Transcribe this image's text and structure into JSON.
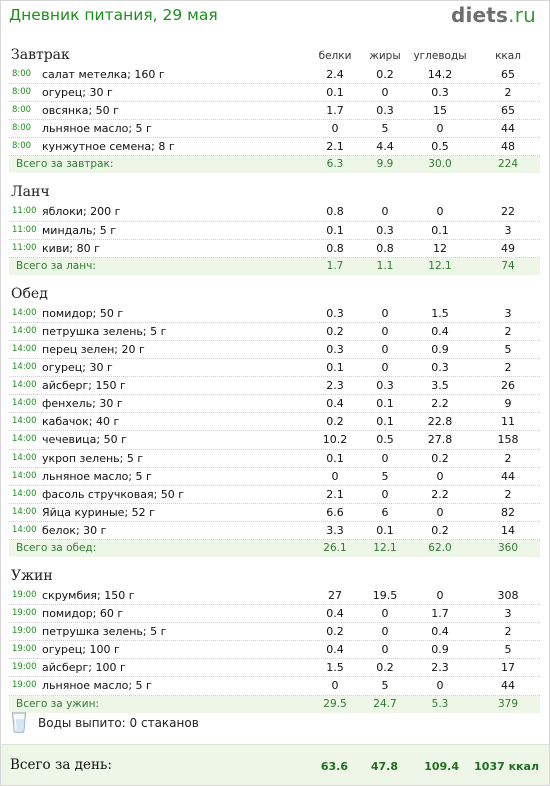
{
  "header": {
    "title": "Дневник питания, 29 мая",
    "logo_name": "diets",
    "logo_tld": ".ru"
  },
  "columns": [
    "белки",
    "жиры",
    "углеводы",
    "ккал"
  ],
  "meals": [
    {
      "name": "Завтрак",
      "items": [
        {
          "time": "8:00",
          "food": "салат метелка; 160 г",
          "protein": "2.4",
          "fat": "0.2",
          "carbs": "14.2",
          "kcal": "65"
        },
        {
          "time": "8:00",
          "food": "огурец; 30 г",
          "protein": "0.1",
          "fat": "0",
          "carbs": "0.3",
          "kcal": "2"
        },
        {
          "time": "8:00",
          "food": "овсянка; 50 г",
          "protein": "1.7",
          "fat": "0.3",
          "carbs": "15",
          "kcal": "65"
        },
        {
          "time": "8:00",
          "food": "льняное масло; 5 г",
          "protein": "0",
          "fat": "5",
          "carbs": "0",
          "kcal": "44"
        },
        {
          "time": "8:00",
          "food": "кунжутное семена; 8 г",
          "protein": "2.1",
          "fat": "4.4",
          "carbs": "0.5",
          "kcal": "48"
        }
      ],
      "total": {
        "label": "Всего за завтрак:",
        "protein": "6.3",
        "fat": "9.9",
        "carbs": "30.0",
        "kcal": "224"
      }
    },
    {
      "name": "Ланч",
      "items": [
        {
          "time": "11:00",
          "food": "яблоки; 200 г",
          "protein": "0.8",
          "fat": "0",
          "carbs": "0",
          "kcal": "22"
        },
        {
          "time": "11:00",
          "food": "миндаль; 5 г",
          "protein": "0.1",
          "fat": "0.3",
          "carbs": "0.1",
          "kcal": "3"
        },
        {
          "time": "11:00",
          "food": "киви; 80 г",
          "protein": "0.8",
          "fat": "0.8",
          "carbs": "12",
          "kcal": "49"
        }
      ],
      "total": {
        "label": "Всего за ланч:",
        "protein": "1.7",
        "fat": "1.1",
        "carbs": "12.1",
        "kcal": "74"
      }
    },
    {
      "name": "Обед",
      "items": [
        {
          "time": "14:00",
          "food": "помидор; 50 г",
          "protein": "0.3",
          "fat": "0",
          "carbs": "1.5",
          "kcal": "3"
        },
        {
          "time": "14:00",
          "food": "петрушка зелень; 5 г",
          "protein": "0.2",
          "fat": "0",
          "carbs": "0.4",
          "kcal": "2"
        },
        {
          "time": "14:00",
          "food": "перец зелен; 20 г",
          "protein": "0.3",
          "fat": "0",
          "carbs": "0.9",
          "kcal": "5"
        },
        {
          "time": "14:00",
          "food": "огурец; 30 г",
          "protein": "0.1",
          "fat": "0",
          "carbs": "0.3",
          "kcal": "2"
        },
        {
          "time": "14:00",
          "food": "айсберг; 150 г",
          "protein": "2.3",
          "fat": "0.3",
          "carbs": "3.5",
          "kcal": "26"
        },
        {
          "time": "14:00",
          "food": "фенхель; 30 г",
          "protein": "0.4",
          "fat": "0.1",
          "carbs": "2.2",
          "kcal": "9"
        },
        {
          "time": "14:00",
          "food": "кабачок; 40 г",
          "protein": "0.2",
          "fat": "0.1",
          "carbs": "22.8",
          "kcal": "11"
        },
        {
          "time": "14:00",
          "food": "чечевица; 50 г",
          "protein": "10.2",
          "fat": "0.5",
          "carbs": "27.8",
          "kcal": "158"
        },
        {
          "time": "14:00",
          "food": "укроп зелень; 5 г",
          "protein": "0.1",
          "fat": "0",
          "carbs": "0.2",
          "kcal": "2"
        },
        {
          "time": "14:00",
          "food": "льняное масло; 5 г",
          "protein": "0",
          "fat": "5",
          "carbs": "0",
          "kcal": "44"
        },
        {
          "time": "14:00",
          "food": "фасоль стручковая; 50 г",
          "protein": "2.1",
          "fat": "0",
          "carbs": "2.2",
          "kcal": "2"
        },
        {
          "time": "14:00",
          "food": "Яйца куриные; 52 г",
          "protein": "6.6",
          "fat": "6",
          "carbs": "0",
          "kcal": "82"
        },
        {
          "time": "14:00",
          "food": "белок; 30 г",
          "protein": "3.3",
          "fat": "0.1",
          "carbs": "0.2",
          "kcal": "14"
        }
      ],
      "total": {
        "label": "Всего за обед:",
        "protein": "26.1",
        "fat": "12.1",
        "carbs": "62.0",
        "kcal": "360"
      }
    },
    {
      "name": "Ужин",
      "items": [
        {
          "time": "19:00",
          "food": "скрумбия; 150 г",
          "protein": "27",
          "fat": "19.5",
          "carbs": "0",
          "kcal": "308"
        },
        {
          "time": "19:00",
          "food": "помидор; 60 г",
          "protein": "0.4",
          "fat": "0",
          "carbs": "1.7",
          "kcal": "3"
        },
        {
          "time": "19:00",
          "food": "петрушка зелень; 5 г",
          "protein": "0.2",
          "fat": "0",
          "carbs": "0.4",
          "kcal": "2"
        },
        {
          "time": "19:00",
          "food": "огурец; 100 г",
          "protein": "0.4",
          "fat": "0",
          "carbs": "0.9",
          "kcal": "5"
        },
        {
          "time": "19:00",
          "food": "айсберг; 100 г",
          "protein": "1.5",
          "fat": "0.2",
          "carbs": "2.3",
          "kcal": "17"
        },
        {
          "time": "19:00",
          "food": "льняное масло; 5 г",
          "protein": "0",
          "fat": "5",
          "carbs": "0",
          "kcal": "44"
        }
      ],
      "total": {
        "label": "Всего за ужин:",
        "protein": "29.5",
        "fat": "24.7",
        "carbs": "5.3",
        "kcal": "379"
      }
    }
  ],
  "water": {
    "icon": "water-glass-icon",
    "text": "Воды выпито: 0 стаканов"
  },
  "day_total": {
    "label": "Всего за день:",
    "protein": "63.6",
    "fat": "47.8",
    "carbs": "109.4",
    "kcal": "1037 ккал"
  },
  "colors": {
    "accent_green": "#1d8f1d",
    "total_bg": "#eef6e8"
  }
}
